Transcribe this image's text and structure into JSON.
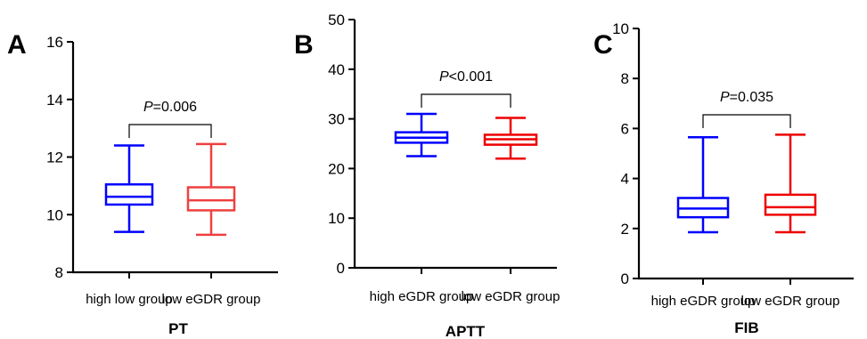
{
  "chart_data": [
    {
      "type": "box",
      "panel_label": "A",
      "title": "PT",
      "categories": [
        "high low group",
        "low eGDR group"
      ],
      "ylim": [
        8,
        16
      ],
      "yticks": [
        "8",
        "10",
        "12",
        "14",
        "16"
      ],
      "series": [
        {
          "name": "",
          "color": "#0000ff",
          "min": 9.4,
          "q1": 10.35,
          "median": 10.62,
          "q3": 11.05,
          "max": 12.4
        },
        {
          "name": "",
          "color": "#ee4040",
          "min": 9.3,
          "q1": 10.15,
          "median": 10.5,
          "q3": 10.95,
          "max": 12.45
        }
      ],
      "annotation": {
        "p_symbol": "P",
        "p_text": "=0.006"
      }
    },
    {
      "type": "box",
      "panel_label": "B",
      "title": "APTT",
      "categories": [
        "high eGDR group",
        "low eGDR group"
      ],
      "ylim": [
        0,
        50
      ],
      "yticks": [
        "0",
        "10",
        "20",
        "30",
        "40",
        "50"
      ],
      "series": [
        {
          "name": "",
          "color": "#0000ff",
          "min": 22.5,
          "q1": 25.2,
          "median": 26.2,
          "q3": 27.3,
          "max": 31.0
        },
        {
          "name": "",
          "color": "#ee0000",
          "min": 22.0,
          "q1": 24.8,
          "median": 25.9,
          "q3": 26.8,
          "max": 30.2
        }
      ],
      "annotation": {
        "p_symbol": "P",
        "p_text": "<0.001"
      }
    },
    {
      "type": "box",
      "panel_label": "C",
      "title": "FIB",
      "categories": [
        "high eGDR group",
        "low eGDR group"
      ],
      "ylim": [
        0,
        10
      ],
      "yticks": [
        "0",
        "2",
        "4",
        "6",
        "8",
        "10"
      ],
      "series": [
        {
          "name": "",
          "color": "#0000ff",
          "min": 1.85,
          "q1": 2.45,
          "median": 2.8,
          "q3": 3.22,
          "max": 5.65
        },
        {
          "name": "",
          "color": "#ee0000",
          "min": 1.85,
          "q1": 2.55,
          "median": 2.85,
          "q3": 3.35,
          "max": 5.75
        }
      ],
      "annotation": {
        "p_symbol": "P",
        "p_text": "=0.035"
      }
    }
  ]
}
